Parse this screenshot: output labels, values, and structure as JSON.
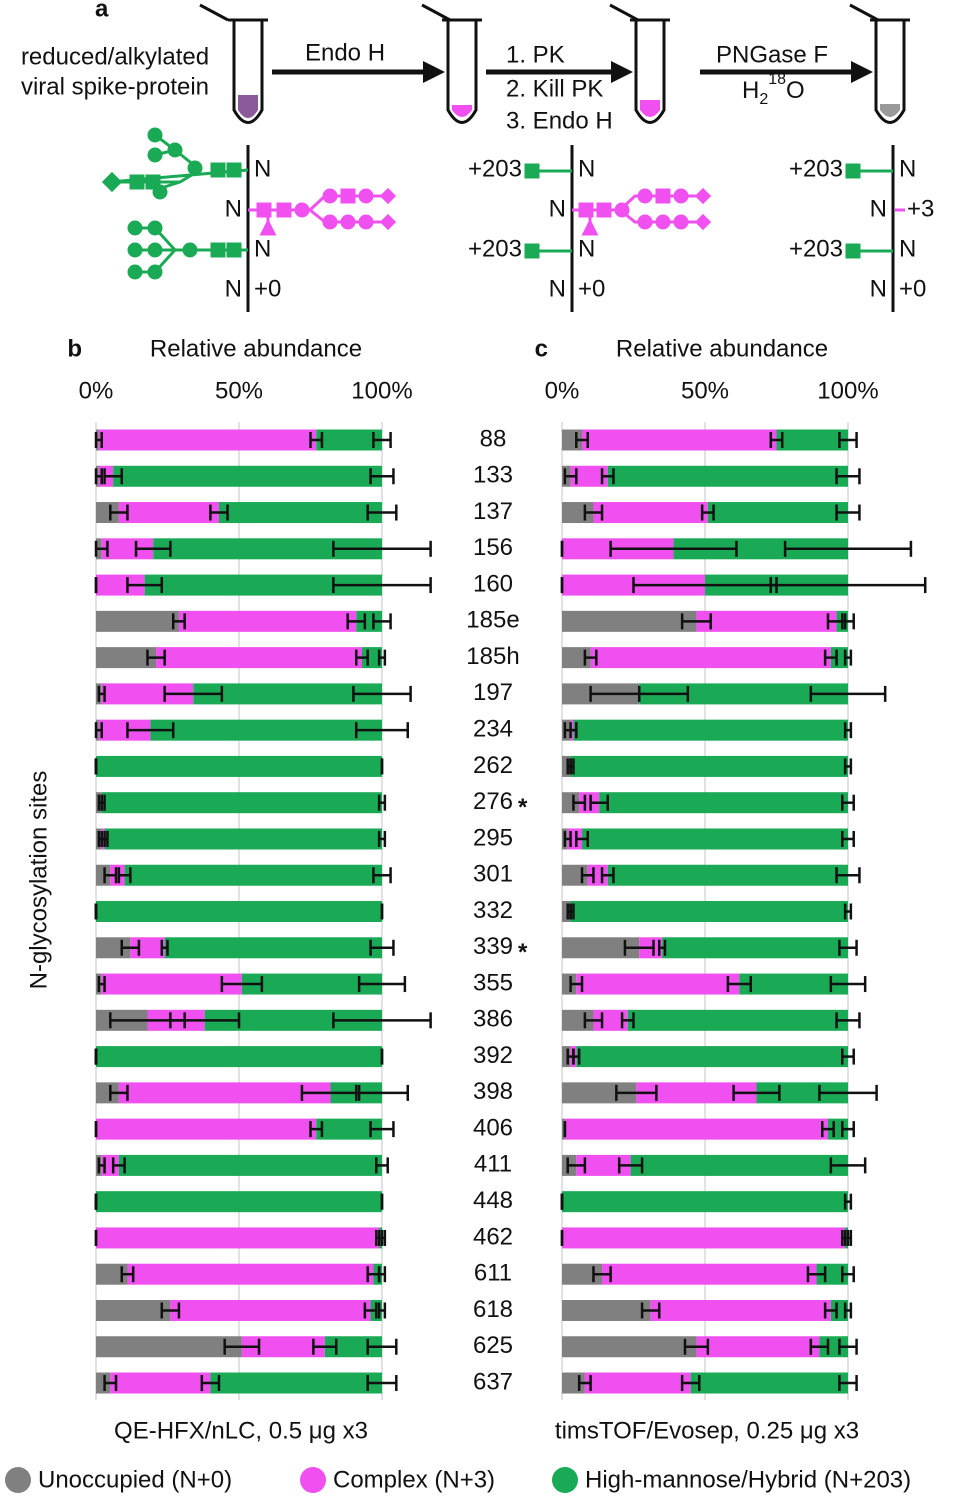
{
  "panel_a": {
    "letter": "a",
    "sample_line1": "reduced/alkylated",
    "sample_line2": "viral spike-protein",
    "step1": "Endo H",
    "step2": [
      "1. PK",
      "2. Kill PK",
      "3. Endo H"
    ],
    "step3": "PNGase F",
    "step3_water": {
      "base": "H",
      "sub": "2",
      "sup": "18",
      "tail": "O"
    },
    "states": [
      {
        "sites": [
          {
            "residue": "N"
          },
          {
            "residue": "N"
          },
          {
            "residue": "N"
          },
          {
            "residue": "N",
            "mod": {
              "text": "+0",
              "color": "#888888"
            }
          }
        ]
      },
      {
        "sites": [
          {
            "residue": "N",
            "mod": {
              "text": "+203",
              "color": "#1aaa55"
            }
          },
          {
            "residue": "N"
          },
          {
            "residue": "N",
            "mod": {
              "text": "+203",
              "color": "#1aaa55"
            }
          },
          {
            "residue": "N",
            "mod": {
              "text": "+0",
              "color": "#888888"
            }
          }
        ]
      },
      {
        "sites": [
          {
            "residue": "N",
            "mod": {
              "text": "+203",
              "color": "#1aaa55"
            }
          },
          {
            "residue": "N",
            "mod": {
              "text": "+3",
              "color": "#f050f0"
            }
          },
          {
            "residue": "N",
            "mod": {
              "text": "+203",
              "color": "#1aaa55"
            }
          },
          {
            "residue": "N",
            "mod": {
              "text": "+0",
              "color": "#888888"
            }
          }
        ]
      }
    ]
  },
  "y_axis_label": "N-glycosylation sites",
  "annotations": [
    {
      "category_index": 10,
      "text": "*",
      "color": "#1aaa55"
    },
    {
      "category_index": 14,
      "text": "*",
      "color": "#1aaa55"
    }
  ],
  "chart_data": [
    {
      "type": "stacked_bar_horizontal",
      "panel": "b",
      "title": "Relative abundance",
      "footer": "QE-HFX/nLC, 0.5 μg x3",
      "categories": [
        "88",
        "133",
        "137",
        "156",
        "160",
        "185e",
        "185h",
        "197",
        "234",
        "262",
        "276",
        "295",
        "301",
        "332",
        "339",
        "355",
        "386",
        "392",
        "398",
        "406",
        "411",
        "448",
        "462",
        "611",
        "618",
        "625",
        "637"
      ],
      "xlim": [
        0,
        100
      ],
      "xticks": [
        {
          "value": 0,
          "label": "0%"
        },
        {
          "value": 50,
          "label": "50%"
        },
        {
          "value": 100,
          "label": "100%"
        }
      ],
      "grid": true,
      "series": [
        {
          "name": "Unoccupied (N+0)",
          "color": "#808080",
          "values": [
            1,
            1,
            8,
            2,
            0,
            29,
            21,
            2,
            1,
            0,
            2,
            2,
            5,
            0,
            12,
            2,
            18,
            0,
            8,
            0,
            2,
            0,
            0,
            11,
            26,
            51,
            5
          ],
          "errors": [
            1,
            1,
            3,
            2,
            0,
            2,
            3,
            1,
            1,
            0,
            1,
            1,
            2,
            0,
            3,
            1,
            13,
            0,
            3,
            0,
            1,
            0,
            0,
            2,
            3,
            6,
            2
          ]
        },
        {
          "name": "Complex (N+3)",
          "color": "#f050f0",
          "values": [
            76,
            5,
            35,
            18,
            17,
            62,
            72,
            32,
            18,
            0,
            0,
            1,
            5,
            0,
            12,
            49,
            20,
            0,
            74,
            77,
            6,
            0,
            99,
            86,
            70,
            29,
            35
          ],
          "errors": [
            2,
            3,
            3,
            6,
            6,
            3,
            2,
            10,
            8,
            0,
            0,
            1,
            2,
            0,
            1,
            7,
            12,
            0,
            10,
            2,
            2,
            0,
            1,
            2,
            2,
            4,
            3
          ]
        },
        {
          "name": "High-mannose/Hybrid (N+203)",
          "color": "#1aaa55",
          "values": [
            23,
            94,
            57,
            80,
            83,
            9,
            7,
            66,
            81,
            100,
            98,
            97,
            90,
            100,
            76,
            49,
            62,
            100,
            18,
            23,
            92,
            100,
            1,
            3,
            4,
            20,
            60
          ],
          "errors": [
            3,
            4,
            5,
            17,
            17,
            3,
            1,
            10,
            9,
            0,
            1,
            1,
            3,
            0,
            4,
            8,
            17,
            0,
            9,
            4,
            2,
            0,
            1,
            1,
            1,
            5,
            5
          ]
        }
      ]
    },
    {
      "type": "stacked_bar_horizontal",
      "panel": "c",
      "title": "Relative abundance",
      "footer": "timsTOF/Evosep, 0.25 μg x3",
      "xlim": [
        0,
        100
      ],
      "xticks": [
        {
          "value": 0,
          "label": "0%"
        },
        {
          "value": 50,
          "label": "50%"
        },
        {
          "value": 100,
          "label": "100%"
        }
      ],
      "grid": true,
      "series": [
        {
          "color": "#808080",
          "values": [
            7,
            3,
            11,
            0,
            0,
            47,
            10,
            27,
            3,
            3,
            6,
            2,
            9,
            3,
            27,
            5,
            11,
            3,
            26,
            1,
            5,
            0,
            0,
            14,
            31,
            47,
            8
          ],
          "errors": [
            2,
            2,
            3,
            0,
            0,
            5,
            2,
            17,
            2,
            1,
            2,
            1,
            2,
            1,
            5,
            2,
            3,
            1,
            7,
            0,
            3,
            0,
            0,
            3,
            3,
            4,
            2
          ]
        },
        {
          "color": "#f050f0",
          "values": [
            68,
            13,
            40,
            39,
            50,
            49,
            84,
            0,
            1,
            0,
            7,
            5,
            7,
            0,
            8,
            57,
            12,
            2,
            42,
            92,
            19,
            0,
            99,
            75,
            63,
            43,
            37
          ],
          "errors": [
            2,
            2,
            2,
            22,
            25,
            3,
            2,
            0,
            1,
            0,
            3,
            2,
            2,
            0,
            1,
            4,
            2,
            1,
            8,
            2,
            4,
            0,
            1,
            3,
            2,
            3,
            3
          ]
        },
        {
          "color": "#1aaa55",
          "values": [
            25,
            84,
            49,
            61,
            50,
            4,
            6,
            73,
            96,
            97,
            87,
            93,
            84,
            97,
            65,
            38,
            77,
            95,
            32,
            7,
            76,
            100,
            1,
            11,
            6,
            10,
            55
          ],
          "errors": [
            3,
            4,
            4,
            22,
            27,
            2,
            1,
            13,
            1,
            1,
            2,
            2,
            4,
            1,
            3,
            6,
            4,
            2,
            10,
            2,
            6,
            1,
            1,
            2,
            1,
            3,
            3
          ]
        }
      ]
    }
  ]
}
